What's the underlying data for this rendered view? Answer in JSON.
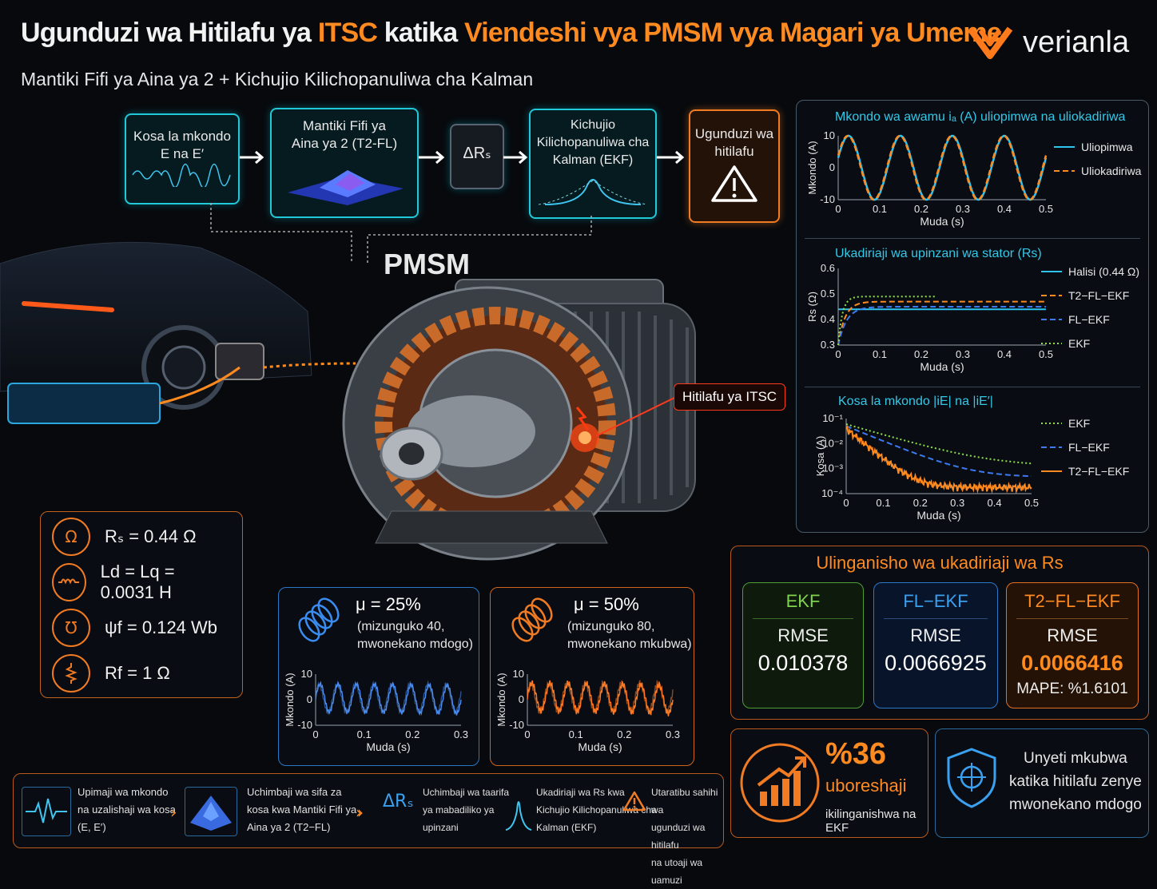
{
  "header": {
    "title_part1": "Ugunduzi wa Hitilafu ya ",
    "title_part2": "ITSC",
    "title_part3": " katika ",
    "title_part4": "Viendeshi vya PMSM vya Magari ya Umeme",
    "subtitle": "Mantiki Fifi ya Aina ya 2 + Kichujio Kilichopanuliwa cha Kalman",
    "logo_text": "verianla"
  },
  "pipeline": {
    "step1": "Kosa la mkondo\nE na E′",
    "step2": "Mantiki Fifi ya\nAina ya 2 (T2-FL)",
    "step3": "ΔRₛ",
    "step4": "Kichujio\nKilichopanuliwa cha\nKalman (EKF)",
    "step5": "Ugunduzi wa\nhitilafu"
  },
  "motor": {
    "label": "PMSM",
    "fault_label": "Hitilafu ya ITSC"
  },
  "params": [
    {
      "icon": "omega-icon",
      "text": "Rₛ = 0.44 Ω"
    },
    {
      "icon": "inductor-icon",
      "text": "Ld = Lq = 0.0031 H"
    },
    {
      "icon": "magnet-icon",
      "text": "ψf = 0.124 Wb"
    },
    {
      "icon": "resistor-icon",
      "text": "Rf = 1 Ω"
    }
  ],
  "fault_cases": [
    {
      "mu": "μ = 25%",
      "desc": "(mizunguko 40,\nmwonekano mdogo)",
      "ylabel": "Mkondo (A)",
      "xlabel": "Muda (s)"
    },
    {
      "mu": "μ = 50%",
      "desc": "(mizunguko 80,\nmwonekano mkubwa)",
      "ylabel": "Mkondo (A)",
      "xlabel": "Muda (s)"
    }
  ],
  "chart_data": [
    {
      "type": "line",
      "title": "Mkondo wa awamu iₐ (A) uliopimwa na uliokadiriwa",
      "xlabel": "Muda (s)",
      "ylabel": "Mkondo (A)",
      "xlim": [
        0,
        0.5
      ],
      "ylim": [
        -10,
        10
      ],
      "xticks": [
        "0",
        "0.1",
        "0.2",
        "0.3",
        "0.4",
        "0.5"
      ],
      "yticks": [
        "10",
        "0",
        "-10"
      ],
      "series": [
        {
          "name": "Uliopimwa",
          "color": "#2ec4f0",
          "style": "solid",
          "frequency_hz": 8,
          "amplitude": 10
        },
        {
          "name": "Uliokadiriwa",
          "color": "#ff8a1f",
          "style": "dashed",
          "frequency_hz": 8,
          "amplitude": 10
        }
      ]
    },
    {
      "type": "line",
      "title": "Ukadiriaji wa upinzani wa stator (Rs)",
      "xlabel": "Muda (s)",
      "ylabel": "Rs (Ω)",
      "xlim": [
        0,
        0.5
      ],
      "ylim": [
        0.3,
        0.6
      ],
      "xticks": [
        "0",
        "0.1",
        "0.2",
        "0.3",
        "0.4",
        "0.5"
      ],
      "yticks": [
        "0.6",
        "0.5",
        "0.4",
        "0.3"
      ],
      "series": [
        {
          "name": "Halisi (0.44 Ω)",
          "color": "#2ec4f0",
          "style": "solid",
          "final": 0.44
        },
        {
          "name": "T2−FL−EKF",
          "color": "#ff8a1f",
          "style": "dashed",
          "final": 0.47
        },
        {
          "name": "FL−EKF",
          "color": "#3d7af0",
          "style": "dashed",
          "final": 0.45
        },
        {
          "name": "EKF",
          "color": "#8ee04a",
          "style": "dotted",
          "final": 0.49
        }
      ]
    },
    {
      "type": "line",
      "title": "Kosa la mkondo |iE| na |iE′|",
      "xlabel": "Muda (s)",
      "ylabel": "Kosa (A)",
      "xlim": [
        0,
        0.5
      ],
      "yscale": "log",
      "ylim": [
        0.0001,
        0.1
      ],
      "xticks": [
        "0",
        "0.1",
        "0.2",
        "0.3",
        "0.4",
        "0.5"
      ],
      "yticks": [
        "10⁻¹",
        "10⁻²",
        "10⁻³",
        "10⁻⁴"
      ],
      "series": [
        {
          "name": "EKF",
          "color": "#8ee04a",
          "style": "dotted"
        },
        {
          "name": "FL−EKF",
          "color": "#3d7af0",
          "style": "dashed"
        },
        {
          "name": "T2−FL−EKF",
          "color": "#ff8a1f",
          "style": "solid"
        }
      ]
    },
    {
      "type": "line",
      "title": "",
      "xlabel": "Muda (s)",
      "ylabel": "Mkondo (A)",
      "xlim": [
        0,
        0.3
      ],
      "ylim": [
        -10,
        10
      ],
      "xticks": [
        "0",
        "0.1",
        "0.2",
        "0.3"
      ],
      "yticks": [
        "10",
        "0",
        "-10"
      ],
      "series": [
        {
          "color": "#4a8cf0"
        }
      ]
    },
    {
      "type": "line",
      "title": "",
      "xlabel": "Muda (s)",
      "ylabel": "Mkondo (A)",
      "xlim": [
        0,
        0.3
      ],
      "ylim": [
        -10,
        10
      ],
      "xticks": [
        "0",
        "0.1",
        "0.2",
        "0.3"
      ],
      "yticks": [
        "10",
        "0",
        "-10"
      ],
      "series": [
        {
          "color": "#ff7a22"
        }
      ]
    }
  ],
  "comparison": {
    "title": "Ulinganisho wa ukadiriaji wa Rs",
    "cards": [
      {
        "name": "EKF",
        "metric": "RMSE",
        "value": "0.010378",
        "extra": "",
        "color": "#6fcf4a"
      },
      {
        "name": "FL−EKF",
        "metric": "RMSE",
        "value": "0.0066925",
        "extra": "",
        "color": "#3aa0f0"
      },
      {
        "name": "T2−FL−EKF",
        "metric": "RMSE",
        "value": "0.0066416",
        "extra": "MAPE: %1.6101",
        "color": "#ff8a1f"
      }
    ]
  },
  "improvement": {
    "value": "%36",
    "label": "uboreshaji",
    "note": "ikilinganishwa na EKF"
  },
  "sensitivity": {
    "text": "Unyeti mkubwa\nkatika hitilafu zenye\nmwonekano mdogo"
  },
  "workflow": [
    {
      "icon": "waveform-icon",
      "text": "Upimaji wa mkondo\nna uzalishaji wa kosa\n(E, E′)"
    },
    {
      "icon": "fuzzy-surface-icon",
      "text": "Uchimbaji wa sifa za\nkosa kwa Mantiki Fifi ya\nAina ya 2 (T2−FL)"
    },
    {
      "icon": "delta-rs-icon",
      "icon_text": "ΔRₛ",
      "text": "Uchimbaji wa taarifa\nya mabadiliko ya\nupinzani"
    },
    {
      "icon": "gaussian-icon",
      "text": "Ukadiriaji wa Rs kwa\nKichujio Kilichopanuliwa cha\nKalman (EKF)"
    },
    {
      "icon": "warning-icon",
      "text": "Utaratibu sahihi wa\nugunduzi wa hitilafu\nna utoaji wa uamuzi"
    }
  ]
}
